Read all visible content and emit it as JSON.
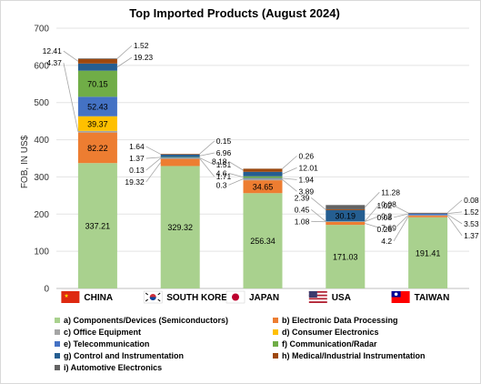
{
  "chart_data": {
    "type": "bar",
    "stacked": true,
    "title": "Top Imported Products (August 2024)",
    "ylabel": "FOB, IN US$",
    "ylim": [
      0,
      700
    ],
    "yticks": [
      0,
      100,
      200,
      300,
      400,
      500,
      600,
      700
    ],
    "grid": true,
    "legend_position": "bottom",
    "categories": [
      "CHINA",
      "SOUTH KOREA",
      "JAPAN",
      "USA",
      "TAIWAN"
    ],
    "category_flags": [
      "china-flag-icon",
      "south-korea-flag-icon",
      "japan-flag-icon",
      "usa-flag-icon",
      "taiwan-flag-icon"
    ],
    "series": [
      {
        "name": "a) Components/Devices (Semiconductors)",
        "color": "#a9d18e",
        "values": [
          337.21,
          329.32,
          256.34,
          171.03,
          191.41
        ]
      },
      {
        "name": "b) Electronic Data Processing",
        "color": "#ed7d31",
        "values": [
          82.22,
          19.32,
          34.65,
          7.69,
          4.2
        ]
      },
      {
        "name": "c) Office Equipment",
        "color": "#a5a5a5",
        "values": [
          4.37,
          1.71,
          3.89,
          1.08,
          1.37
        ]
      },
      {
        "name": "d) Consumer Electronics",
        "color": "#ffc000",
        "values": [
          39.37,
          0.13,
          0.3,
          0.2,
          0.26
        ]
      },
      {
        "name": "e) Telecommunication",
        "color": "#4472c4",
        "values": [
          52.43,
          1.51,
          1.94,
          0.45,
          3.53
        ]
      },
      {
        "name": "f) Communication/Radar",
        "color": "#70ad47",
        "values": [
          70.15,
          1.37,
          4.6,
          0.08,
          0.08
        ]
      },
      {
        "name": "g) Control and Instrumentation",
        "color": "#255e91",
        "values": [
          19.23,
          6.96,
          12.01,
          30.19,
          1.52
        ]
      },
      {
        "name": "h) Medical/Industrial Instrumentation",
        "color": "#9e480e",
        "values": [
          12.41,
          1.64,
          8.18,
          2.39,
          1.02
        ]
      },
      {
        "name": "i) Automotive Electronics",
        "color": "#636363",
        "values": [
          1.52,
          0.15,
          0.26,
          11.28,
          0.08
        ]
      }
    ]
  }
}
